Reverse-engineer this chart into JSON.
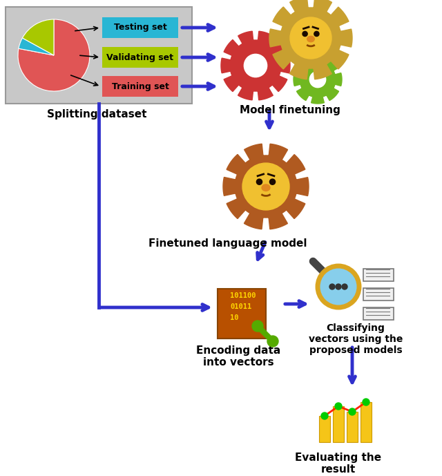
{
  "fig_width": 6.4,
  "fig_height": 6.89,
  "dpi": 100,
  "background_color": "#ffffff",
  "labels": {
    "splitting": "Splitting dataset",
    "model_ft": "Model finetuning",
    "finetuned": "Finetuned language model",
    "encoding": "Encoding data\ninto vectors",
    "classifying": "Classifying\nvectors using the\nproposed models",
    "evaluating": "Evaluating the\nresult"
  },
  "legend_labels": [
    "Testing set",
    "Validating set",
    "Training set"
  ],
  "legend_colors": [
    "#29B6D4",
    "#A8C800",
    "#E05555"
  ],
  "pie_colors": [
    "#E05555",
    "#29B6D4",
    "#A8C800"
  ],
  "pie_sizes": [
    78,
    5,
    17
  ],
  "arrow_color": "#3030CC",
  "box_bg": "#C8C8C8",
  "gear_red": "#CC3333",
  "gear_gold": "#C8A030",
  "gear_green": "#70B820",
  "gear_brown": "#B05A20",
  "face_yellow": "#F0C030",
  "face_orange_nose": "#E08820",
  "face_eye": "#1A0A00",
  "face_mouth": "#884400",
  "enc_rect_color": "#B85000",
  "enc_text_color": "#FFD700",
  "wrench_color": "#55AA00",
  "mag_glass_color": "#87CEEB",
  "mag_ring_color": "#DAA520",
  "mag_handle_color": "#444444",
  "mag_dot_color": "#333333",
  "doc_fill": "#F0F0F0",
  "doc_edge": "#777777",
  "bar_color": "#F5C518",
  "bar_edge": "#CC9900",
  "line_color": "#FF2200",
  "dot_color": "#00CC00"
}
